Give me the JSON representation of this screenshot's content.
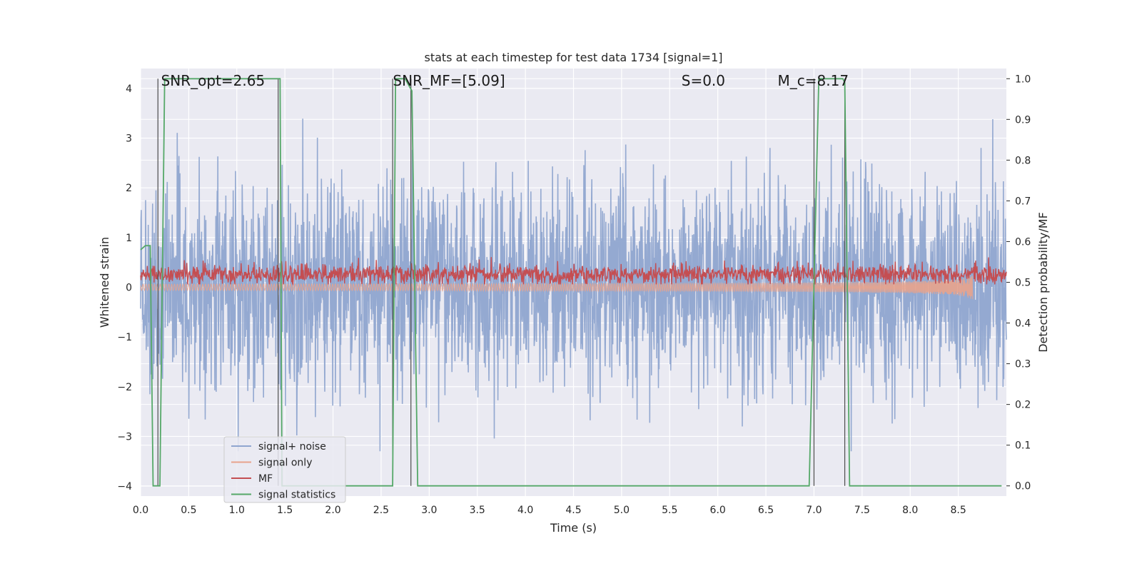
{
  "chart_data": {
    "type": "line",
    "title": "stats at each timestep for test data 1734 [signal=1]",
    "xlabel": "Time (s)",
    "ylabel_left": "Whitened strain",
    "ylabel_right": "Detection probability/MF",
    "xlim": [
      0.0,
      9.0
    ],
    "ylim_left": [
      -4.2,
      4.4
    ],
    "ylim_right": [
      -0.025,
      1.025
    ],
    "x_ticks": [
      "0.0",
      "0.5",
      "1.0",
      "1.5",
      "2.0",
      "2.5",
      "3.0",
      "3.5",
      "4.0",
      "4.5",
      "5.0",
      "5.5",
      "6.0",
      "6.5",
      "7.0",
      "7.5",
      "8.0",
      "8.5"
    ],
    "y_ticks_left": [
      "4",
      "3",
      "2",
      "1",
      "0",
      "−1",
      "−2",
      "−3",
      "−4"
    ],
    "y_ticks_right": [
      "1.0",
      "0.9",
      "0.8",
      "0.7",
      "0.6",
      "0.5",
      "0.4",
      "0.3",
      "0.2",
      "0.1",
      "0.0"
    ],
    "grid": true,
    "legend_position": "lower-left",
    "annotations": [
      {
        "label": "SNR_opt=2.65",
        "x": 0.19
      },
      {
        "label": "SNR_MF=[5.09]",
        "x": 2.6
      },
      {
        "label": "S=0.0",
        "x": 5.6
      },
      {
        "label": "M_c=8.17",
        "x": 6.6
      }
    ],
    "series": [
      {
        "name": "signal+ noise",
        "color": "#8fa5cf",
        "axis": "left",
        "description_range": [
          -3.3,
          3.5
        ]
      },
      {
        "name": "signal only",
        "color": "#e8a38c",
        "axis": "left",
        "chirp_end_time": 8.65
      },
      {
        "name": "MF",
        "color": "#c44e52",
        "axis": "right",
        "typical_range": [
          0.5,
          0.56
        ]
      },
      {
        "name": "signal statistics",
        "color": "#55a868",
        "axis": "right",
        "x": [
          0.0,
          0.05,
          0.1,
          0.13,
          0.18,
          0.2,
          0.25,
          0.3,
          1.4,
          1.45,
          1.47,
          1.5,
          2.55,
          2.62,
          2.65,
          2.7,
          2.75,
          2.82,
          2.88,
          6.95,
          7.05,
          7.3,
          7.32,
          7.37,
          8.95
        ],
        "values": [
          0.58,
          0.59,
          0.59,
          0.0,
          0.0,
          0.0,
          1.0,
          1.0,
          1.0,
          1.0,
          0.0,
          0.0,
          0.0,
          0.0,
          1.0,
          1.0,
          1.0,
          0.97,
          0.0,
          0.0,
          1.0,
          1.0,
          0.99,
          0.0,
          0.0
        ]
      }
    ],
    "vertical_markers": [
      0.18,
      1.43,
      2.62,
      2.81,
      7.0,
      7.32
    ]
  }
}
